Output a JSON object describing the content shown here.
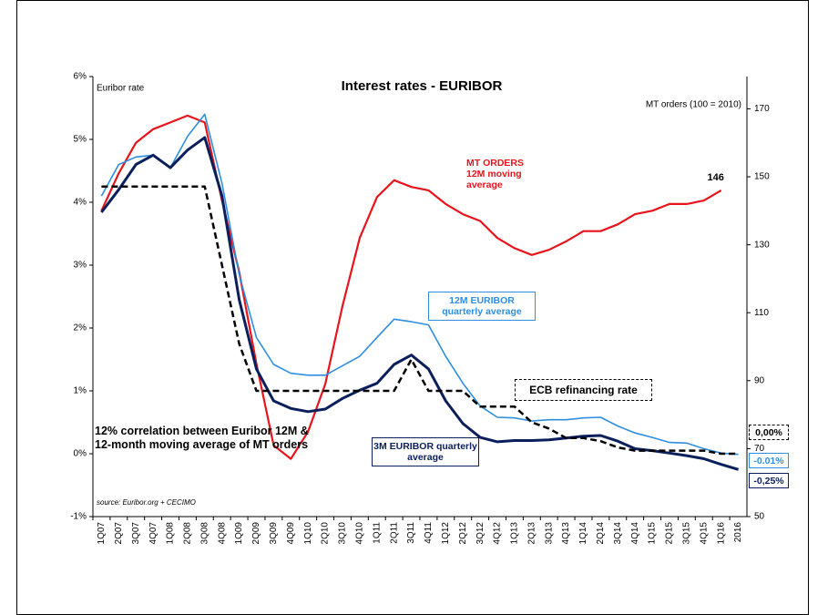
{
  "chart_data": {
    "type": "line",
    "title": "Interest rates - EURIBOR",
    "y_label": "Euribor rate",
    "y2_label": "MT orders (100 = 2010)",
    "note": "12% correlation between Euribor 12M & 12-month moving average of MT orders",
    "source": "source: Euribor.org + CECIMO",
    "categories": [
      "1Q07",
      "2Q07",
      "3Q07",
      "4Q07",
      "1Q08",
      "2Q08",
      "3Q08",
      "4Q08",
      "1Q09",
      "2Q09",
      "3Q09",
      "4Q09",
      "1Q10",
      "2Q10",
      "3Q10",
      "4Q10",
      "1Q11",
      "2Q11",
      "3Q11",
      "4Q11",
      "1Q12",
      "2Q12",
      "3Q12",
      "4Q12",
      "1Q13",
      "2Q13",
      "3Q13",
      "4Q13",
      "1Q14",
      "2Q14",
      "3Q14",
      "4Q14",
      "1Q15",
      "2Q15",
      "3Q15",
      "4Q15",
      "1Q16",
      "2016"
    ],
    "ylim": [
      -1,
      6
    ],
    "yticks": [
      {
        "value": -1,
        "label": "-1%"
      },
      {
        "value": 0,
        "label": "0%"
      },
      {
        "value": 1,
        "label": "1%"
      },
      {
        "value": 2,
        "label": "2%"
      },
      {
        "value": 3,
        "label": "3%"
      },
      {
        "value": 4,
        "label": "4%"
      },
      {
        "value": 5,
        "label": "5%"
      },
      {
        "value": 6,
        "label": "6%"
      }
    ],
    "y2lim": [
      50,
      179.5
    ],
    "y2ticks": [
      50,
      70,
      90,
      110,
      130,
      150,
      170
    ],
    "series": [
      {
        "name": "MT ORDERS 12M moving average",
        "color": "#e8141c",
        "axis": "y2",
        "dashed": false,
        "width": 2.2,
        "values": [
          140,
          151,
          160,
          164,
          166,
          168,
          166,
          143,
          122,
          95,
          71,
          67,
          75,
          89,
          112,
          132,
          144,
          149,
          147,
          146,
          142,
          139,
          137,
          132,
          129,
          127,
          128.5,
          131,
          134,
          134,
          136,
          139,
          140,
          142,
          142,
          143,
          146,
          null
        ]
      },
      {
        "name": "12M EURIBOR quarterly average",
        "color": "#2f8ee0",
        "dashed": false,
        "width": 1.6,
        "values": [
          4.1,
          4.6,
          4.72,
          4.75,
          4.55,
          5.05,
          5.4,
          4.3,
          2.85,
          1.85,
          1.42,
          1.28,
          1.25,
          1.25,
          1.4,
          1.55,
          1.85,
          2.14,
          2.1,
          2.05,
          1.55,
          1.12,
          0.76,
          0.58,
          0.57,
          0.52,
          0.54,
          0.54,
          0.57,
          0.58,
          0.44,
          0.33,
          0.26,
          0.18,
          0.17,
          0.08,
          0.01,
          -0.01
        ],
        "value_labels": [
          null,
          null,
          null,
          null,
          null,
          null,
          null,
          null,
          null,
          null,
          null,
          null,
          null,
          null,
          null,
          null,
          null,
          null,
          null,
          null,
          null,
          null,
          null,
          null,
          null,
          null,
          null,
          null,
          null,
          null,
          null,
          null,
          null,
          null,
          null,
          null,
          null,
          "-0.01%"
        ]
      },
      {
        "name": "3M EURIBOR quarterly average",
        "color": "#0a1f5c",
        "dashed": false,
        "width": 3,
        "values": [
          3.84,
          4.2,
          4.6,
          4.75,
          4.55,
          4.83,
          5.03,
          4.1,
          2.45,
          1.35,
          0.84,
          0.72,
          0.67,
          0.71,
          0.88,
          1.01,
          1.12,
          1.42,
          1.57,
          1.35,
          0.84,
          0.48,
          0.26,
          0.19,
          0.21,
          0.21,
          0.22,
          0.25,
          0.28,
          0.29,
          0.2,
          0.08,
          0.05,
          0.01,
          -0.03,
          -0.08,
          -0.17,
          -0.25
        ],
        "value_labels": [
          null,
          null,
          null,
          null,
          null,
          null,
          null,
          null,
          null,
          null,
          null,
          null,
          null,
          null,
          null,
          null,
          null,
          null,
          null,
          null,
          null,
          null,
          null,
          null,
          null,
          null,
          null,
          null,
          null,
          null,
          null,
          null,
          null,
          null,
          null,
          null,
          null,
          "-0,25%"
        ]
      },
      {
        "name": "ECB refinancing rate",
        "color": "#000000",
        "dashed": true,
        "width": 2.5,
        "values": [
          4.25,
          4.25,
          4.25,
          4.25,
          4.25,
          4.25,
          4.25,
          3.0,
          1.75,
          1.0,
          1.0,
          1.0,
          1.0,
          1.0,
          1.0,
          1.0,
          1.0,
          1.0,
          1.5,
          1.0,
          1.0,
          1.0,
          0.75,
          0.75,
          0.75,
          0.5,
          0.4,
          0.25,
          0.25,
          0.2,
          0.1,
          0.05,
          0.05,
          0.05,
          0.05,
          0.05,
          0.0,
          0.0
        ],
        "value_labels": [
          null,
          null,
          null,
          null,
          null,
          null,
          null,
          null,
          null,
          null,
          null,
          null,
          null,
          null,
          null,
          null,
          null,
          null,
          null,
          null,
          null,
          null,
          null,
          null,
          null,
          null,
          null,
          null,
          null,
          null,
          null,
          null,
          null,
          null,
          null,
          null,
          null,
          "0,00%"
        ]
      }
    ]
  }
}
